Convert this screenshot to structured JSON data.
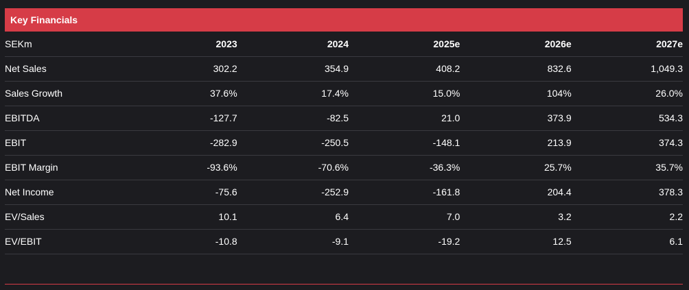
{
  "panel": {
    "title": "Key Financials",
    "accent_color": "#d63c47",
    "background_color": "#1c1c20"
  },
  "table": {
    "header": [
      "SEKm",
      "2023",
      "2024",
      "2025e",
      "2026e",
      "2027e"
    ],
    "rows": [
      [
        "Net Sales",
        "302.2",
        "354.9",
        "408.2",
        "832.6",
        "1,049.3"
      ],
      [
        "Sales Growth",
        "37.6%",
        "17.4%",
        "15.0%",
        "104%",
        "26.0%"
      ],
      [
        "EBITDA",
        "-127.7",
        "-82.5",
        "21.0",
        "373.9",
        "534.3"
      ],
      [
        "EBIT",
        "-282.9",
        "-250.5",
        "-148.1",
        "213.9",
        "374.3"
      ],
      [
        "EBIT Margin",
        "-93.6%",
        "-70.6%",
        "-36.3%",
        "25.7%",
        "35.7%"
      ],
      [
        "Net Income",
        "-75.6",
        "-252.9",
        "-161.8",
        "204.4",
        "378.3"
      ],
      [
        "EV/Sales",
        "10.1",
        "6.4",
        "7.0",
        "3.2",
        "2.2"
      ],
      [
        "EV/EBIT",
        "-10.8",
        "-9.1",
        "-19.2",
        "12.5",
        "6.1"
      ]
    ]
  }
}
